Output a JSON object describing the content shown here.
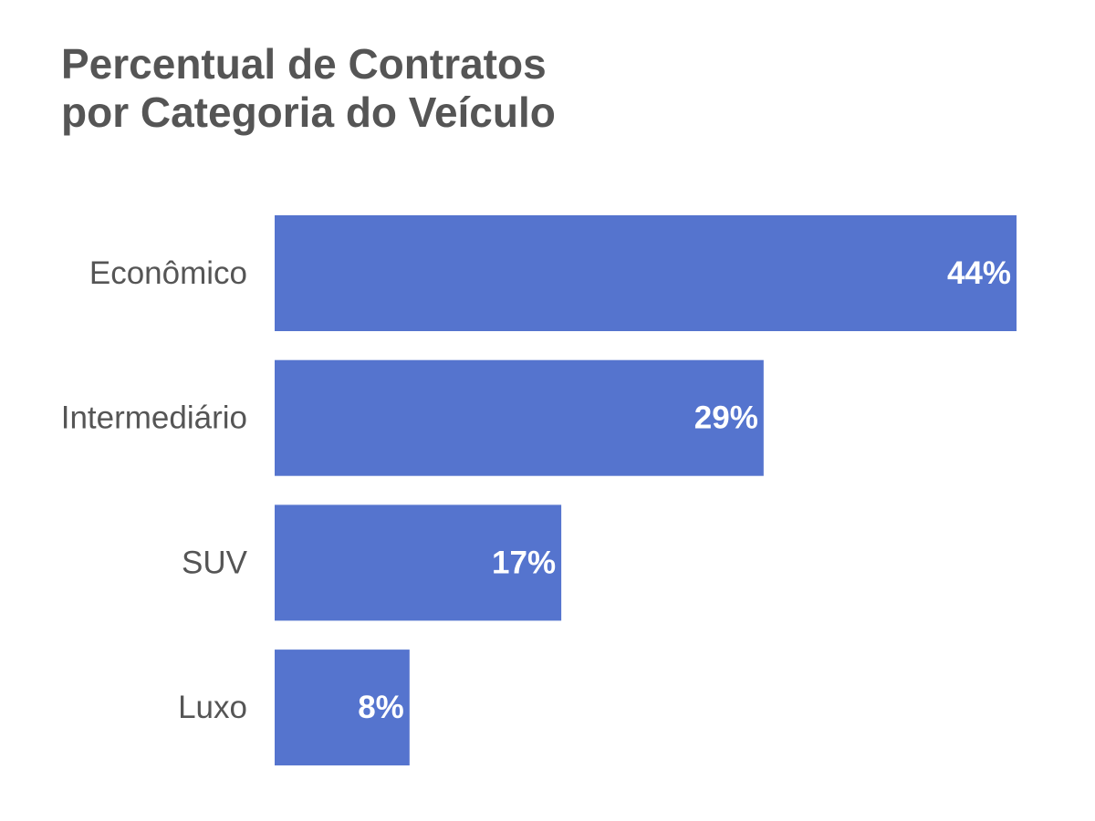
{
  "chart_data": {
    "type": "bar",
    "orientation": "horizontal",
    "title_lines": [
      "Percentual de Contratos",
      "por Categoria do Veículo"
    ],
    "categories": [
      "Econômico",
      "Intermediário",
      "SUV",
      "Luxo"
    ],
    "values": [
      44,
      29,
      17,
      8
    ],
    "value_labels": [
      "44%",
      "29%",
      "17%",
      "8%"
    ],
    "xlim": [
      0,
      44
    ],
    "grid": false,
    "legend": "none",
    "bar_color": "#5574CE",
    "label_color": "#555555",
    "value_label_color": "#FFFFFF"
  }
}
